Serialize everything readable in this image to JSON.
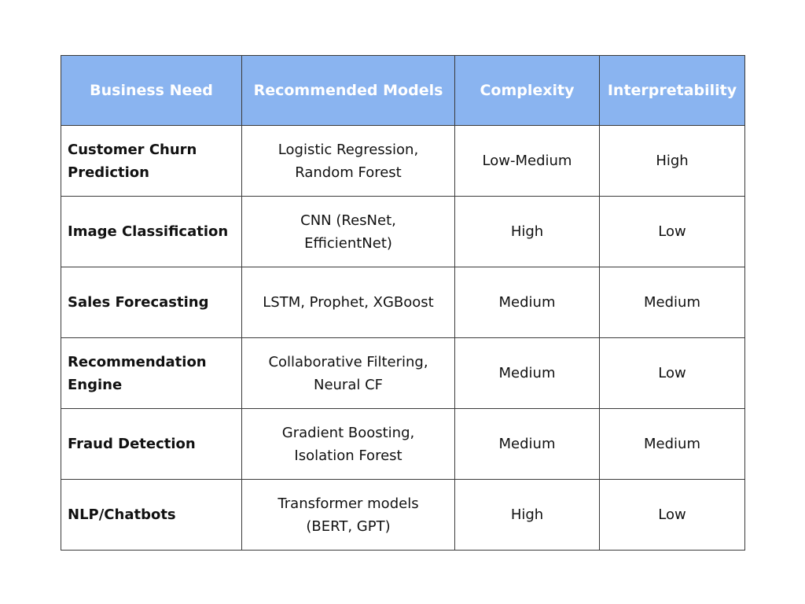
{
  "table": {
    "header": [
      "Business Need",
      "Recommended Models",
      "Complexity",
      "Interpretability"
    ],
    "rows": [
      [
        "Customer Churn Prediction",
        "Logistic Regression, Random Forest",
        "Low-Medium",
        "High"
      ],
      [
        "Image Classification",
        "CNN (ResNet, EfficientNet)",
        "High",
        "Low"
      ],
      [
        "Sales Forecasting",
        "LSTM, Prophet, XGBoost",
        "Medium",
        "Medium"
      ],
      [
        "Recommendation Engine",
        "Collaborative Filtering, Neural CF",
        "Medium",
        "Low"
      ],
      [
        "Fraud Detection",
        "Gradient Boosting, Isolation Forest",
        "Medium",
        "Medium"
      ],
      [
        "NLP/Chatbots",
        "Transformer models (BERT, GPT)",
        "High",
        "Low"
      ]
    ]
  }
}
